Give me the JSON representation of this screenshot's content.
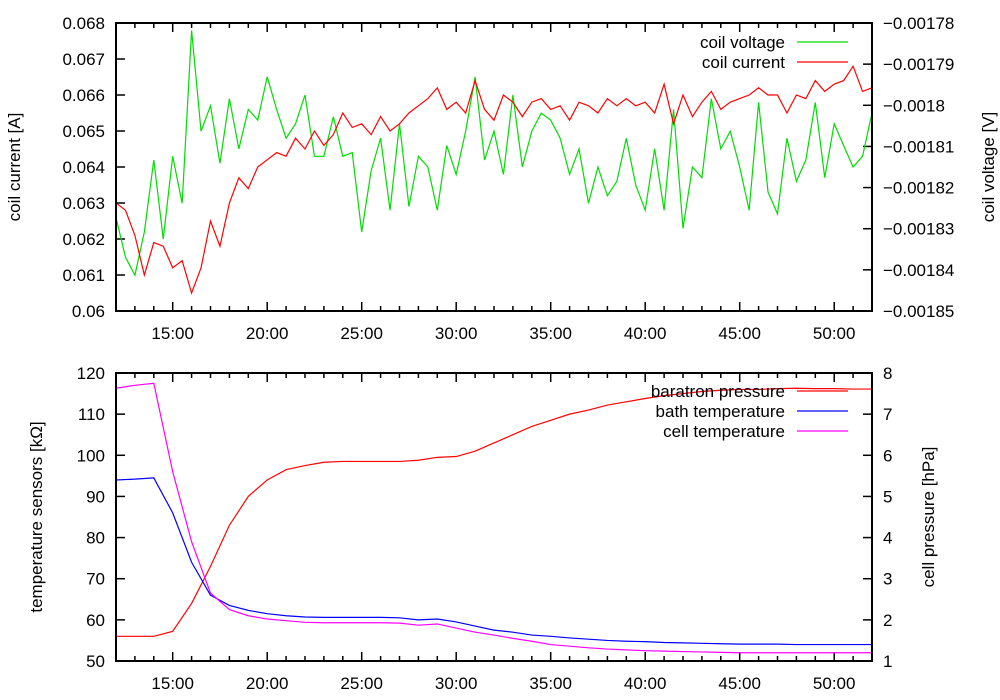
{
  "chart_data": [
    {
      "type": "line",
      "title": "",
      "xlabel": "",
      "ylabel": "coil current [A]",
      "y2label": "coil voltage [V]",
      "xlim": [
        12,
        52
      ],
      "ylim": [
        0.06,
        0.068
      ],
      "y2lim": [
        -0.00185,
        -0.00178
      ],
      "grid": false,
      "legend": "top-right",
      "x_ticks": [
        15,
        20,
        25,
        30,
        35,
        40,
        45,
        50
      ],
      "x_tick_labels": [
        "15:00",
        "20:00",
        "25:00",
        "30:00",
        "35:00",
        "40:00",
        "45:00",
        "50:00"
      ],
      "y_ticks": [
        0.06,
        0.061,
        0.062,
        0.063,
        0.064,
        0.065,
        0.066,
        0.067,
        0.068
      ],
      "y_tick_labels": [
        "0.06",
        "0.061",
        "0.062",
        "0.063",
        "0.064",
        "0.065",
        "0.066",
        "0.067",
        "0.068"
      ],
      "y2_ticks": [
        -0.00185,
        -0.00184,
        -0.00183,
        -0.00182,
        -0.00181,
        -0.0018,
        -0.00179,
        -0.00178
      ],
      "y2_tick_labels": [
        "−0.00185",
        "−0.00184",
        "−0.00183",
        "−0.00182",
        "−0.00181",
        "−0.0018",
        "−0.00179",
        "−0.00178"
      ],
      "x_start": 12,
      "x_step": 0.5,
      "series": [
        {
          "name": "coil voltage",
          "axis": "y2",
          "color": "#00dd00",
          "values": [
            -0.0018273,
            -0.0018369,
            -0.0018413,
            -0.0018308,
            -0.0018133,
            -0.0018325,
            -0.0018124,
            -0.0018238,
            -0.0017818,
            -0.0018063,
            -0.0018001,
            -0.0018141,
            -0.0017984,
            -0.0018106,
            -0.001801,
            -0.0018036,
            -0.0017931,
            -0.001801,
            -0.001808,
            -0.0018045,
            -0.0017975,
            -0.0018124,
            -0.0018124,
            -0.0018028,
            -0.0018124,
            -0.0018115,
            -0.0018308,
            -0.0018159,
            -0.001808,
            -0.0018255,
            -0.0018045,
            -0.0018246,
            -0.0018124,
            -0.001815,
            -0.0018255,
            -0.0018098,
            -0.0018168,
            -0.0018063,
            -0.0017931,
            -0.0018133,
            -0.0018063,
            -0.0018168,
            -0.0017975,
            -0.001815,
            -0.0018063,
            -0.0018019,
            -0.0018036,
            -0.001808,
            -0.0018168,
            -0.0018106,
            -0.0018238,
            -0.001815,
            -0.001822,
            -0.0018185,
            -0.001808,
            -0.0018194,
            -0.0018255,
            -0.0018106,
            -0.0018255,
            -0.001801,
            -0.0018299,
            -0.001815,
            -0.0018176,
            -0.0017984,
            -0.0018106,
            -0.0018063,
            -0.001815,
            -0.0018255,
            -0.0017993,
            -0.0018211,
            -0.0018264,
            -0.001808,
            -0.0018185,
            -0.0018133,
            -0.0017993,
            -0.0018176,
            -0.0018045,
            -0.0018098,
            -0.001815,
            -0.0018124,
            -0.0018019
          ]
        },
        {
          "name": "coil current",
          "axis": "y",
          "color": "#ff0000",
          "values": [
            0.063,
            0.0628,
            0.0621,
            0.061,
            0.0619,
            0.0618,
            0.0612,
            0.0614,
            0.0605,
            0.0612,
            0.0625,
            0.0618,
            0.063,
            0.0637,
            0.0634,
            0.064,
            0.0642,
            0.0644,
            0.0643,
            0.0648,
            0.0645,
            0.065,
            0.0646,
            0.0649,
            0.0655,
            0.0651,
            0.0652,
            0.0649,
            0.0654,
            0.065,
            0.0652,
            0.0655,
            0.0657,
            0.0659,
            0.0662,
            0.0656,
            0.0658,
            0.0655,
            0.0664,
            0.0656,
            0.0653,
            0.066,
            0.0658,
            0.0654,
            0.0658,
            0.0659,
            0.0656,
            0.0657,
            0.0653,
            0.0658,
            0.0657,
            0.0655,
            0.0659,
            0.0657,
            0.0659,
            0.0657,
            0.0658,
            0.0655,
            0.0663,
            0.0652,
            0.066,
            0.0654,
            0.0658,
            0.0661,
            0.0656,
            0.0658,
            0.0659,
            0.066,
            0.0662,
            0.066,
            0.066,
            0.0655,
            0.066,
            0.0659,
            0.0664,
            0.0661,
            0.0663,
            0.0664,
            0.0668,
            0.0661,
            0.0662
          ]
        }
      ]
    },
    {
      "type": "line",
      "title": "",
      "xlabel": "",
      "ylabel": "temperature sensors [kΩ]",
      "y2label": "cell pressure [hPa]",
      "xlim": [
        12,
        52
      ],
      "ylim": [
        50,
        120
      ],
      "y2lim": [
        1,
        8
      ],
      "grid": false,
      "legend": "top-right",
      "x_ticks": [
        15,
        20,
        25,
        30,
        35,
        40,
        45,
        50
      ],
      "x_tick_labels": [
        "15:00",
        "20:00",
        "25:00",
        "30:00",
        "35:00",
        "40:00",
        "45:00",
        "50:00"
      ],
      "y_ticks": [
        50,
        60,
        70,
        80,
        90,
        100,
        110,
        120
      ],
      "y_tick_labels": [
        "50",
        "60",
        "70",
        "80",
        "90",
        "100",
        "110",
        "120"
      ],
      "y2_ticks": [
        1,
        2,
        3,
        4,
        5,
        6,
        7,
        8
      ],
      "y2_tick_labels": [
        "1",
        "2",
        "3",
        "4",
        "5",
        "6",
        "7",
        "8"
      ],
      "x_start": 12,
      "x_step": 1,
      "series": [
        {
          "name": "baratron pressure",
          "axis": "y2",
          "color": "#ff0000",
          "values": [
            1.6,
            1.6,
            1.6,
            1.72,
            2.4,
            3.3,
            4.3,
            5.0,
            5.4,
            5.65,
            5.75,
            5.83,
            5.85,
            5.85,
            5.85,
            5.85,
            5.88,
            5.95,
            5.97,
            6.1,
            6.3,
            6.5,
            6.7,
            6.85,
            7.0,
            7.1,
            7.22,
            7.3,
            7.38,
            7.45,
            7.5,
            7.55,
            7.58,
            7.6,
            7.6,
            7.62,
            7.63,
            7.62,
            7.62,
            7.61,
            7.61
          ]
        },
        {
          "name": "bath temperature",
          "axis": "y",
          "color": "#0000ff",
          "values": [
            94,
            94.2,
            94.5,
            86,
            74,
            66,
            63.5,
            62.3,
            61.5,
            61,
            60.7,
            60.6,
            60.6,
            60.6,
            60.6,
            60.5,
            60,
            60.2,
            59.5,
            58.5,
            57.5,
            57,
            56.3,
            56,
            55.6,
            55.3,
            55,
            54.8,
            54.7,
            54.5,
            54.4,
            54.3,
            54.2,
            54.1,
            54.1,
            54.1,
            54,
            54,
            54,
            54,
            54
          ]
        },
        {
          "name": "cell temperature",
          "axis": "y",
          "color": "#ff00ff",
          "values": [
            116.3,
            117,
            117.5,
            96,
            79,
            66.5,
            62.5,
            61,
            60.2,
            59.8,
            59.4,
            59.3,
            59.3,
            59.3,
            59.3,
            59.2,
            58.7,
            59,
            58,
            57,
            56.3,
            55.5,
            54.8,
            54,
            53.6,
            53.2,
            52.9,
            52.7,
            52.5,
            52.4,
            52.3,
            52.2,
            52.1,
            52,
            52,
            52,
            52,
            52,
            52,
            52,
            52
          ]
        }
      ]
    }
  ]
}
